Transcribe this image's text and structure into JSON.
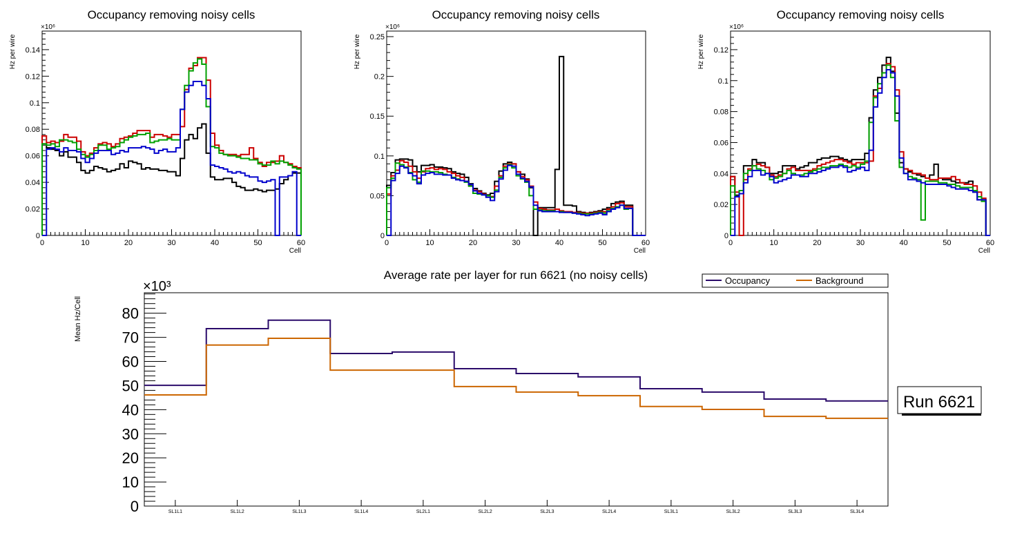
{
  "colors": {
    "black": "#000000",
    "red": "#cc0000",
    "green": "#00a000",
    "blue": "#0000cc",
    "occupancy": "#2a0a6a",
    "background": "#cc6600"
  },
  "chart_data": [
    {
      "type": "histogram",
      "title": "Occupancy removing noisy cells",
      "xlabel": "Cell",
      "ylabel": "Hz per wire",
      "y_multiplier": "×10⁶",
      "xlim": [
        0,
        60
      ],
      "ylim": [
        0,
        0.154
      ],
      "xticks": [
        "0",
        "10",
        "20",
        "30",
        "40",
        "50",
        "60"
      ],
      "yticks": [
        "0",
        "0.02",
        "0.04",
        "0.06",
        "0.08",
        "0.1",
        "0.12",
        "0.14"
      ],
      "ytick_values": [
        0,
        0.02,
        0.04,
        0.06,
        0.08,
        0.1,
        0.12,
        0.14
      ],
      "series": [
        {
          "name": "black",
          "color": "#000000",
          "values": [
            0.069,
            0.066,
            0.065,
            0.064,
            0.06,
            0.063,
            0.059,
            0.059,
            0.055,
            0.049,
            0.047,
            0.049,
            0.052,
            0.051,
            0.05,
            0.048,
            0.049,
            0.05,
            0.054,
            0.051,
            0.056,
            0.055,
            0.054,
            0.05,
            0.051,
            0.05,
            0.05,
            0.049,
            0.049,
            0.048,
            0.048,
            0.045,
            0.058,
            0.072,
            0.076,
            0.073,
            0.081,
            0.084,
            0.062,
            0.044,
            0.042,
            0.042,
            0.043,
            0.043,
            0.04,
            0.037,
            0.036,
            0.034,
            0.034,
            0.035,
            0.034,
            0.033,
            0.034,
            0.034,
            0.035,
            0.039,
            0.042,
            0.045,
            0.047,
            0.047
          ]
        },
        {
          "name": "red",
          "color": "#cc0000",
          "values": [
            0.075,
            0.07,
            0.071,
            0.07,
            0.071,
            0.076,
            0.074,
            0.074,
            0.071,
            0.063,
            0.06,
            0.062,
            0.066,
            0.069,
            0.07,
            0.069,
            0.067,
            0.069,
            0.073,
            0.074,
            0.075,
            0.077,
            0.079,
            0.079,
            0.079,
            0.074,
            0.076,
            0.076,
            0.075,
            0.074,
            0.076,
            0.076,
            0.082,
            0.11,
            0.126,
            0.128,
            0.134,
            0.134,
            0.117,
            0.077,
            0.068,
            0.064,
            0.061,
            0.061,
            0.061,
            0.06,
            0.061,
            0.061,
            0.066,
            0.058,
            0.055,
            0.052,
            0.055,
            0.055,
            0.056,
            0.06,
            0.055,
            0.054,
            0.052,
            0.051
          ]
        },
        {
          "name": "green",
          "color": "#00a000",
          "values": [
            0.069,
            0.068,
            0.069,
            0.067,
            0.072,
            0.072,
            0.071,
            0.07,
            0.065,
            0.061,
            0.059,
            0.061,
            0.064,
            0.068,
            0.068,
            0.065,
            0.066,
            0.067,
            0.07,
            0.072,
            0.074,
            0.075,
            0.076,
            0.076,
            0.077,
            0.07,
            0.071,
            0.072,
            0.072,
            0.073,
            0.072,
            0.072,
            0.095,
            0.113,
            0.124,
            0.13,
            0.133,
            0.129,
            0.097,
            0.067,
            0.066,
            0.062,
            0.061,
            0.06,
            0.06,
            0.059,
            0.058,
            0.058,
            0.057,
            0.057,
            0.054,
            0.053,
            0.053,
            0.056,
            0.054,
            0.056,
            0.055,
            0.053,
            0.051,
            0.05
          ]
        },
        {
          "name": "blue",
          "color": "#0000cc",
          "values": [
            0.0,
            0.065,
            0.066,
            0.065,
            0.063,
            0.066,
            0.064,
            0.064,
            0.063,
            0.058,
            0.055,
            0.058,
            0.062,
            0.064,
            0.064,
            0.064,
            0.061,
            0.062,
            0.064,
            0.063,
            0.066,
            0.066,
            0.066,
            0.067,
            0.066,
            0.065,
            0.062,
            0.064,
            0.065,
            0.063,
            0.063,
            0.066,
            0.095,
            0.108,
            0.113,
            0.116,
            0.116,
            0.113,
            0.103,
            0.053,
            0.052,
            0.051,
            0.05,
            0.048,
            0.047,
            0.048,
            0.047,
            0.045,
            0.044,
            0.044,
            0.041,
            0.04,
            0.041,
            0.042,
            0.0,
            0.044,
            0.044,
            0.045,
            0.048,
            0.0
          ]
        }
      ]
    },
    {
      "type": "histogram",
      "title": "Occupancy removing noisy cells",
      "xlabel": "Cell",
      "ylabel": "Hz per wire",
      "y_multiplier": "×10⁶",
      "xlim": [
        0,
        60
      ],
      "ylim": [
        0,
        0.257
      ],
      "xticks": [
        "0",
        "10",
        "20",
        "30",
        "40",
        "50",
        "60"
      ],
      "yticks": [
        "0",
        "0.05",
        "0.1",
        "0.15",
        "0.2",
        "0.25"
      ],
      "ytick_values": [
        0,
        0.05,
        0.1,
        0.15,
        0.2,
        0.25
      ],
      "series": [
        {
          "name": "black",
          "color": "#000000",
          "values": [
            0.063,
            0.079,
            0.095,
            0.096,
            0.096,
            0.095,
            0.087,
            0.08,
            0.088,
            0.088,
            0.089,
            0.086,
            0.086,
            0.085,
            0.084,
            0.08,
            0.078,
            0.077,
            0.073,
            0.065,
            0.059,
            0.056,
            0.053,
            0.051,
            0.053,
            0.068,
            0.081,
            0.09,
            0.092,
            0.09,
            0.08,
            0.077,
            0.071,
            0.06,
            0.0,
            0.035,
            0.035,
            0.035,
            0.035,
            0.083,
            0.225,
            0.038,
            0.038,
            0.037,
            0.03,
            0.029,
            0.028,
            0.029,
            0.03,
            0.031,
            0.033,
            0.035,
            0.04,
            0.042,
            0.043,
            0.038,
            0.038,
            0.0,
            0.0,
            0.0
          ]
        },
        {
          "name": "red",
          "color": "#cc0000",
          "values": [
            0.052,
            0.075,
            0.082,
            0.094,
            0.092,
            0.087,
            0.08,
            0.072,
            0.08,
            0.084,
            0.085,
            0.083,
            0.084,
            0.083,
            0.08,
            0.078,
            0.075,
            0.073,
            0.068,
            0.063,
            0.057,
            0.055,
            0.052,
            0.05,
            0.049,
            0.062,
            0.075,
            0.087,
            0.09,
            0.09,
            0.08,
            0.074,
            0.07,
            0.062,
            0.042,
            0.034,
            0.033,
            0.032,
            0.032,
            0.033,
            0.031,
            0.03,
            0.03,
            0.029,
            0.029,
            0.028,
            0.028,
            0.028,
            0.029,
            0.03,
            0.03,
            0.033,
            0.036,
            0.04,
            0.041,
            0.036,
            0.036,
            0.0,
            0.0,
            0.0
          ]
        },
        {
          "name": "green",
          "color": "#00a000",
          "values": [
            0.06,
            0.072,
            0.091,
            0.089,
            0.086,
            0.079,
            0.07,
            0.067,
            0.081,
            0.081,
            0.08,
            0.08,
            0.079,
            0.077,
            0.076,
            0.073,
            0.071,
            0.069,
            0.067,
            0.062,
            0.053,
            0.052,
            0.051,
            0.05,
            0.048,
            0.057,
            0.073,
            0.085,
            0.089,
            0.085,
            0.075,
            0.071,
            0.067,
            0.05,
            0.033,
            0.032,
            0.031,
            0.031,
            0.031,
            0.03,
            0.03,
            0.029,
            0.029,
            0.028,
            0.028,
            0.027,
            0.027,
            0.027,
            0.028,
            0.029,
            0.028,
            0.031,
            0.034,
            0.036,
            0.038,
            0.033,
            0.034,
            0.0,
            0.0,
            0.0
          ]
        },
        {
          "name": "blue",
          "color": "#0000cc",
          "values": [
            0.0,
            0.069,
            0.078,
            0.087,
            0.085,
            0.078,
            0.075,
            0.065,
            0.076,
            0.078,
            0.079,
            0.077,
            0.077,
            0.076,
            0.076,
            0.072,
            0.07,
            0.069,
            0.068,
            0.064,
            0.056,
            0.053,
            0.051,
            0.048,
            0.044,
            0.055,
            0.071,
            0.082,
            0.088,
            0.087,
            0.077,
            0.072,
            0.068,
            0.061,
            0.038,
            0.031,
            0.03,
            0.03,
            0.03,
            0.03,
            0.029,
            0.029,
            0.029,
            0.028,
            0.027,
            0.026,
            0.025,
            0.026,
            0.027,
            0.028,
            0.026,
            0.03,
            0.033,
            0.035,
            0.038,
            0.034,
            0.034,
            0.0,
            0.0,
            0.0
          ]
        }
      ]
    },
    {
      "type": "histogram",
      "title": "Occupancy removing noisy cells",
      "xlabel": "Cell",
      "ylabel": "Hz per wire",
      "y_multiplier": "×10⁶",
      "xlim": [
        0,
        60
      ],
      "ylim": [
        0,
        0.132
      ],
      "xticks": [
        "0",
        "10",
        "20",
        "30",
        "40",
        "50",
        "60"
      ],
      "yticks": [
        "0",
        "0.02",
        "0.04",
        "0.06",
        "0.08",
        "0.1",
        "0.12"
      ],
      "ytick_values": [
        0,
        0.02,
        0.04,
        0.06,
        0.08,
        0.1,
        0.12
      ],
      "series": [
        {
          "name": "black",
          "color": "#000000",
          "values": [
            0.038,
            0.026,
            0.027,
            0.045,
            0.045,
            0.049,
            0.047,
            0.047,
            0.044,
            0.04,
            0.04,
            0.041,
            0.045,
            0.045,
            0.045,
            0.043,
            0.044,
            0.045,
            0.047,
            0.047,
            0.049,
            0.05,
            0.05,
            0.051,
            0.051,
            0.05,
            0.049,
            0.048,
            0.049,
            0.049,
            0.049,
            0.053,
            0.076,
            0.094,
            0.102,
            0.11,
            0.115,
            0.106,
            0.079,
            0.047,
            0.043,
            0.041,
            0.04,
            0.039,
            0.038,
            0.037,
            0.039,
            0.046,
            0.037,
            0.036,
            0.036,
            0.035,
            0.034,
            0.034,
            0.034,
            0.035,
            0.028,
            0.023,
            0.023,
            0.0
          ]
        },
        {
          "name": "red",
          "color": "#cc0000",
          "values": [
            0.038,
            0.028,
            0.0,
            0.036,
            0.043,
            0.045,
            0.046,
            0.045,
            0.044,
            0.039,
            0.038,
            0.039,
            0.04,
            0.043,
            0.044,
            0.042,
            0.042,
            0.042,
            0.042,
            0.043,
            0.045,
            0.046,
            0.047,
            0.048,
            0.049,
            0.049,
            0.048,
            0.047,
            0.046,
            0.047,
            0.047,
            0.047,
            0.048,
            0.09,
            0.095,
            0.105,
            0.111,
            0.109,
            0.094,
            0.054,
            0.043,
            0.042,
            0.04,
            0.04,
            0.039,
            0.037,
            0.036,
            0.036,
            0.037,
            0.037,
            0.037,
            0.038,
            0.036,
            0.034,
            0.033,
            0.033,
            0.032,
            0.028,
            0.024,
            0.0
          ]
        },
        {
          "name": "green",
          "color": "#00a000",
          "values": [
            0.032,
            0.025,
            0.029,
            0.04,
            0.042,
            0.045,
            0.043,
            0.042,
            0.04,
            0.036,
            0.037,
            0.038,
            0.04,
            0.042,
            0.04,
            0.039,
            0.039,
            0.04,
            0.041,
            0.042,
            0.043,
            0.044,
            0.044,
            0.045,
            0.045,
            0.046,
            0.045,
            0.044,
            0.045,
            0.044,
            0.046,
            0.048,
            0.073,
            0.089,
            0.098,
            0.105,
            0.11,
            0.102,
            0.074,
            0.044,
            0.04,
            0.038,
            0.037,
            0.036,
            0.01,
            0.035,
            0.035,
            0.035,
            0.034,
            0.034,
            0.033,
            0.033,
            0.032,
            0.031,
            0.031,
            0.031,
            0.029,
            0.025,
            0.022,
            0.0
          ]
        },
        {
          "name": "blue",
          "color": "#0000cc",
          "values": [
            0.0,
            0.025,
            0.027,
            0.034,
            0.038,
            0.042,
            0.042,
            0.039,
            0.04,
            0.038,
            0.034,
            0.035,
            0.036,
            0.037,
            0.039,
            0.039,
            0.038,
            0.038,
            0.04,
            0.04,
            0.041,
            0.042,
            0.043,
            0.044,
            0.044,
            0.045,
            0.044,
            0.041,
            0.042,
            0.043,
            0.044,
            0.042,
            0.055,
            0.083,
            0.092,
            0.102,
            0.107,
            0.105,
            0.09,
            0.05,
            0.04,
            0.036,
            0.036,
            0.035,
            0.034,
            0.033,
            0.033,
            0.033,
            0.033,
            0.033,
            0.032,
            0.031,
            0.03,
            0.03,
            0.03,
            0.029,
            0.028,
            0.023,
            0.023,
            0.0
          ]
        }
      ]
    },
    {
      "type": "histogram",
      "title": "Average rate per layer for run 6621 (no noisy cells)",
      "xlabel": "",
      "ylabel": "Mean Hz/Cell",
      "y_multiplier": "×10³",
      "categories": [
        "SL1L1",
        "SL1L2",
        "SL1L3",
        "SL1L4",
        "SL2L1",
        "SL2L2",
        "SL2L3",
        "SL2L4",
        "SL3L1",
        "SL3L2",
        "SL3L3",
        "SL3L4"
      ],
      "ylim": [
        0,
        88.5
      ],
      "yticks": [
        "0",
        "10",
        "20",
        "30",
        "40",
        "50",
        "60",
        "70",
        "80"
      ],
      "ytick_values": [
        0,
        10,
        20,
        30,
        40,
        50,
        60,
        70,
        80
      ],
      "legend": {
        "position": "top-right",
        "entries": [
          "Occupancy",
          "Background"
        ]
      },
      "annotation": "Run 6621",
      "series": [
        {
          "name": "Occupancy",
          "color": "#2a0a6a",
          "values": [
            50.1,
            73.6,
            77.1,
            63.3,
            63.9,
            57.0,
            55.0,
            53.6,
            48.7,
            47.3,
            44.4,
            43.6
          ]
        },
        {
          "name": "Background",
          "color": "#cc6600",
          "values": [
            46.1,
            66.8,
            69.6,
            56.4,
            56.4,
            49.6,
            47.3,
            45.8,
            41.3,
            40.1,
            37.2,
            36.4
          ]
        }
      ]
    }
  ]
}
